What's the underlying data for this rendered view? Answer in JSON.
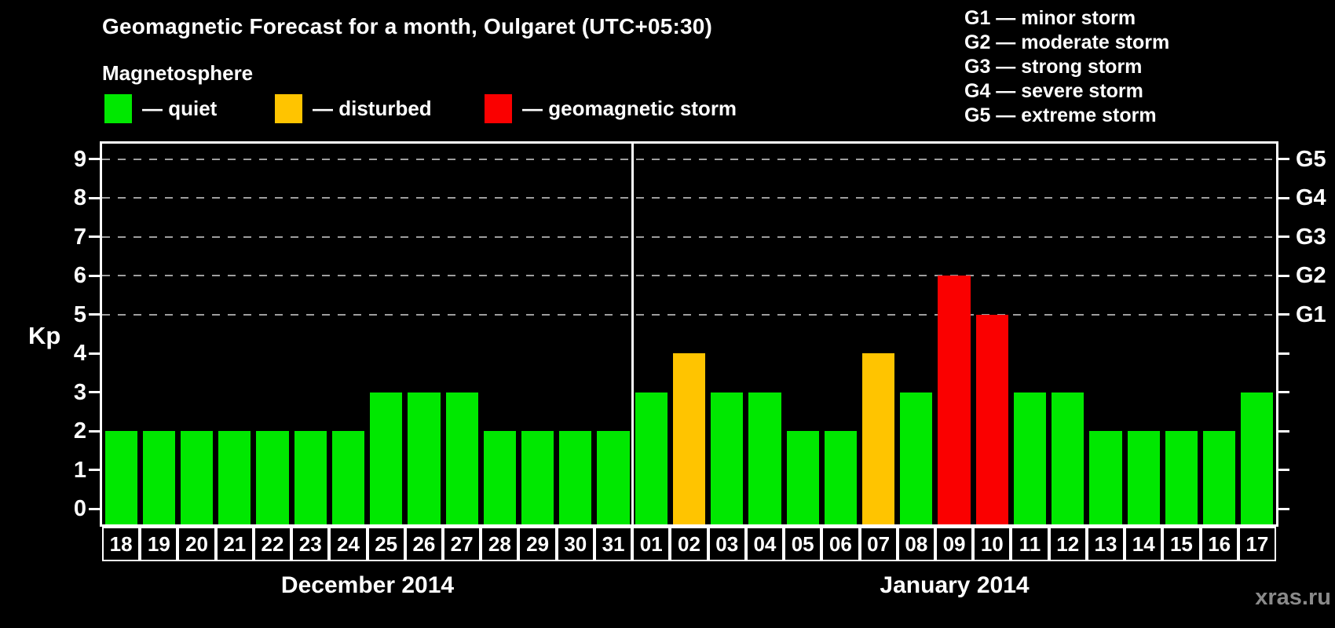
{
  "page": {
    "magnetosphere_label": "Magnetosphere",
    "watermark": "xras.ru"
  },
  "legend": {
    "items": [
      {
        "name": "quiet",
        "label": "— quiet",
        "color": "#00e800"
      },
      {
        "name": "disturbed",
        "label": "— disturbed",
        "color": "#ffc400"
      },
      {
        "name": "storm",
        "label": "— geomagnetic storm",
        "color": "#fa0000"
      }
    ]
  },
  "g_scale_legend": [
    "G1 — minor storm",
    "G2 — moderate storm",
    "G3 — strong storm",
    "G4 — severe storm",
    "G5 — extreme storm"
  ],
  "chart_data": {
    "type": "bar",
    "title": "Geomagnetic Forecast for a month, Oulgaret (UTC+05:30)",
    "ylabel": "Kp",
    "ylim": [
      -0.4,
      9.4
    ],
    "yticks": [
      0,
      1,
      2,
      3,
      4,
      5,
      6,
      7,
      8,
      9
    ],
    "grid": "dashed horizontal lines at G-storm levels only",
    "grid_levels_kp": [
      5,
      6,
      7,
      8,
      9
    ],
    "right_axis_labels": [
      {
        "label": "G1",
        "kp": 5
      },
      {
        "label": "G2",
        "kp": 6
      },
      {
        "label": "G3",
        "kp": 7
      },
      {
        "label": "G4",
        "kp": 8
      },
      {
        "label": "G5",
        "kp": 9
      }
    ],
    "status_thresholds": {
      "quiet_max_kp": 3,
      "disturbed_kp": 4,
      "storm_min_kp": 5
    },
    "status_colors": {
      "quiet": "#00e800",
      "disturbed": "#ffc400",
      "storm": "#fa0000"
    },
    "legend_position": "top",
    "months": [
      {
        "label": "December 2014",
        "days": [
          "18",
          "19",
          "20",
          "21",
          "22",
          "23",
          "24",
          "25",
          "26",
          "27",
          "28",
          "29",
          "30",
          "31"
        ],
        "kp": [
          2,
          2,
          2,
          2,
          2,
          2,
          2,
          3,
          3,
          3,
          2,
          2,
          2,
          2
        ]
      },
      {
        "label": "January 2014",
        "days": [
          "01",
          "02",
          "03",
          "04",
          "05",
          "06",
          "07",
          "08",
          "09",
          "10",
          "11",
          "12",
          "13",
          "14",
          "15",
          "16",
          "17"
        ],
        "kp": [
          3,
          4,
          3,
          3,
          2,
          2,
          4,
          3,
          6,
          5,
          3,
          3,
          2,
          2,
          2,
          2,
          3
        ]
      }
    ]
  }
}
